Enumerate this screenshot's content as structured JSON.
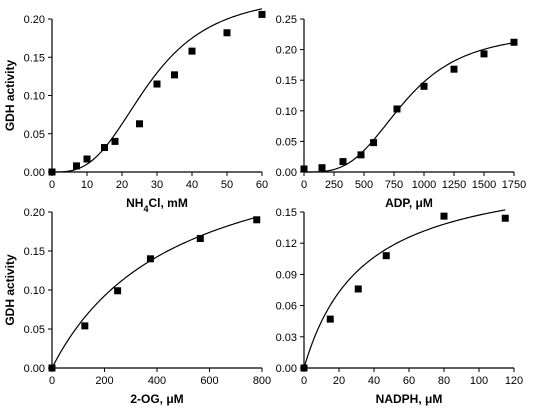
{
  "chart_data": [
    {
      "type": "scatter",
      "xlabel": "NH4Cl, mM",
      "xlabel_parts": {
        "pre": "NH",
        "sub": "4",
        "post": "Cl, mM"
      },
      "ylabel": "GDH activity",
      "xlim": [
        0,
        60
      ],
      "ylim": [
        0,
        0.2
      ],
      "xticks": [
        0,
        10,
        20,
        30,
        40,
        50,
        60
      ],
      "yticks": [
        0,
        0.05,
        0.1,
        0.15,
        0.2
      ],
      "xtick_labels": [
        "0",
        "10",
        "20",
        "30",
        "40",
        "50",
        "60"
      ],
      "ytick_labels": [
        "0.00",
        "0.05",
        "0.10",
        "0.15",
        "0.20"
      ],
      "x": [
        0,
        7,
        10,
        15,
        18,
        25,
        30,
        35,
        40,
        50,
        60
      ],
      "y": [
        0.0,
        0.008,
        0.017,
        0.032,
        0.04,
        0.063,
        0.115,
        0.127,
        0.158,
        0.182,
        0.206
      ],
      "fit": "hill",
      "fit_params": {
        "vmax": 0.235,
        "k": 28,
        "n": 3
      }
    },
    {
      "type": "scatter",
      "xlabel": "ADP, μM",
      "xlabel_parts": {
        "pre": "ADP, μM",
        "sub": "",
        "post": ""
      },
      "ylabel": "",
      "xlim": [
        0,
        1750
      ],
      "ylim": [
        0,
        0.25
      ],
      "xticks": [
        0,
        250,
        500,
        750,
        1000,
        1250,
        1500,
        1750
      ],
      "yticks": [
        0,
        0.05,
        0.1,
        0.15,
        0.2,
        0.25
      ],
      "xtick_labels": [
        "0",
        "250",
        "500",
        "750",
        "1000",
        "1250",
        "1500",
        "1750"
      ],
      "ytick_labels": [
        "0.00",
        "0.05",
        "0.10",
        "0.15",
        "0.20",
        "0.25"
      ],
      "x": [
        0,
        150,
        325,
        475,
        580,
        775,
        1000,
        1250,
        1500,
        1750
      ],
      "y": [
        0.005,
        0.007,
        0.017,
        0.028,
        0.048,
        0.103,
        0.14,
        0.168,
        0.193,
        0.212
      ],
      "fit": "hill",
      "fit_params": {
        "vmax": 0.23,
        "k": 840,
        "n": 3.3
      }
    },
    {
      "type": "scatter",
      "xlabel": "2-OG, μM",
      "xlabel_parts": {
        "pre": "2-OG, μM",
        "sub": "",
        "post": ""
      },
      "ylabel": "GDH activity",
      "xlim": [
        0,
        800
      ],
      "ylim": [
        0,
        0.2
      ],
      "xticks": [
        0,
        200,
        400,
        600,
        800
      ],
      "yticks": [
        0,
        0.05,
        0.1,
        0.15,
        0.2
      ],
      "xtick_labels": [
        "0",
        "200",
        "400",
        "600",
        "800"
      ],
      "ytick_labels": [
        "0.00",
        "0.05",
        "0.10",
        "0.15",
        "0.20"
      ],
      "x": [
        0,
        125,
        250,
        375,
        565,
        780
      ],
      "y": [
        0.0,
        0.054,
        0.099,
        0.14,
        0.166,
        0.19
      ],
      "fit": "mm",
      "fit_params": {
        "vmax": 0.31,
        "k": 470
      }
    },
    {
      "type": "scatter",
      "xlabel": "NADPH, μM",
      "xlabel_parts": {
        "pre": "NADPH, μM",
        "sub": "",
        "post": ""
      },
      "ylabel": "",
      "xlim": [
        0,
        120
      ],
      "ylim": [
        0,
        0.15
      ],
      "xticks": [
        0,
        20,
        40,
        60,
        80,
        100,
        120
      ],
      "yticks": [
        0,
        0.03,
        0.06,
        0.09,
        0.12,
        0.15
      ],
      "xtick_labels": [
        "0",
        "20",
        "40",
        "60",
        "80",
        "100",
        "120"
      ],
      "ytick_labels": [
        "0.00",
        "0.03",
        "0.06",
        "0.09",
        "0.12",
        "0.15"
      ],
      "x": [
        0,
        15,
        31,
        47,
        80,
        115
      ],
      "y": [
        0.0,
        0.047,
        0.076,
        0.108,
        0.146,
        0.144
      ],
      "fit": "mm",
      "fit_params": {
        "vmax": 0.197,
        "k": 34
      }
    }
  ]
}
